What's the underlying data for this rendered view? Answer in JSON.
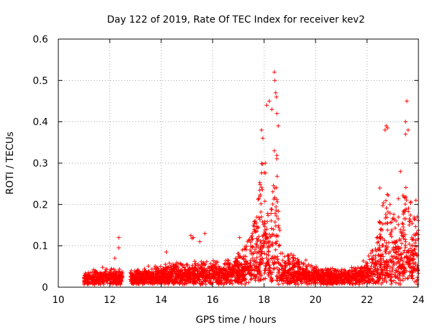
{
  "chart_data": {
    "type": "scatter",
    "title": "Day 122 of 2019, Rate Of TEC Index for receiver kev2",
    "xlabel": "GPS time / hours",
    "ylabel": "ROTI / TECUs",
    "xlim": [
      10,
      24
    ],
    "ylim": [
      0,
      0.6
    ],
    "xticks": [
      "10",
      "12",
      "14",
      "16",
      "18",
      "20",
      "22",
      "24"
    ],
    "yticks": [
      "0",
      "0.1",
      "0.2",
      "0.3",
      "0.4",
      "0.5",
      "0.6"
    ],
    "grid": true,
    "marker": "+",
    "series_color": "#ff0000",
    "time_coverage": [
      [
        11.0,
        12.5
      ],
      [
        12.8,
        24.0
      ]
    ],
    "envelope": [
      {
        "t": 11.0,
        "base": 0.018,
        "spread": 0.02
      },
      {
        "t": 12.0,
        "base": 0.02,
        "spread": 0.025
      },
      {
        "t": 12.5,
        "base": 0.018,
        "spread": 0.02
      },
      {
        "t": 12.8,
        "base": 0.018,
        "spread": 0.02
      },
      {
        "t": 14.0,
        "base": 0.022,
        "spread": 0.03
      },
      {
        "t": 15.0,
        "base": 0.025,
        "spread": 0.035
      },
      {
        "t": 16.0,
        "base": 0.025,
        "spread": 0.035
      },
      {
        "t": 16.8,
        "base": 0.03,
        "spread": 0.04
      },
      {
        "t": 17.3,
        "base": 0.04,
        "spread": 0.07
      },
      {
        "t": 17.8,
        "base": 0.06,
        "spread": 0.18
      },
      {
        "t": 18.0,
        "base": 0.08,
        "spread": 0.3
      },
      {
        "t": 18.2,
        "base": 0.05,
        "spread": 0.1
      },
      {
        "t": 18.45,
        "base": 0.08,
        "spread": 0.35
      },
      {
        "t": 18.7,
        "base": 0.03,
        "spread": 0.05
      },
      {
        "t": 19.2,
        "base": 0.03,
        "spread": 0.05
      },
      {
        "t": 20.0,
        "base": 0.022,
        "spread": 0.025
      },
      {
        "t": 21.0,
        "base": 0.02,
        "spread": 0.02
      },
      {
        "t": 21.8,
        "base": 0.025,
        "spread": 0.03
      },
      {
        "t": 22.3,
        "base": 0.04,
        "spread": 0.06
      },
      {
        "t": 22.7,
        "base": 0.06,
        "spread": 0.2
      },
      {
        "t": 23.0,
        "base": 0.05,
        "spread": 0.15
      },
      {
        "t": 23.5,
        "base": 0.06,
        "spread": 0.2
      },
      {
        "t": 24.0,
        "base": 0.03,
        "spread": 0.15
      }
    ],
    "spikes": [
      {
        "x": 12.35,
        "y": 0.12
      },
      {
        "x": 12.35,
        "y": 0.095
      },
      {
        "x": 12.2,
        "y": 0.07
      },
      {
        "x": 14.2,
        "y": 0.085
      },
      {
        "x": 15.15,
        "y": 0.125
      },
      {
        "x": 15.2,
        "y": 0.118
      },
      {
        "x": 15.25,
        "y": 0.12
      },
      {
        "x": 15.5,
        "y": 0.11
      },
      {
        "x": 15.7,
        "y": 0.13
      },
      {
        "x": 17.05,
        "y": 0.12
      },
      {
        "x": 17.9,
        "y": 0.38
      },
      {
        "x": 17.95,
        "y": 0.36
      },
      {
        "x": 18.05,
        "y": 0.3
      },
      {
        "x": 18.1,
        "y": 0.44
      },
      {
        "x": 18.2,
        "y": 0.45
      },
      {
        "x": 18.3,
        "y": 0.43
      },
      {
        "x": 18.4,
        "y": 0.52
      },
      {
        "x": 18.42,
        "y": 0.5
      },
      {
        "x": 18.45,
        "y": 0.47
      },
      {
        "x": 18.48,
        "y": 0.46
      },
      {
        "x": 18.5,
        "y": 0.42
      },
      {
        "x": 18.55,
        "y": 0.39
      },
      {
        "x": 18.4,
        "y": 0.33
      },
      {
        "x": 22.5,
        "y": 0.24
      },
      {
        "x": 22.7,
        "y": 0.38
      },
      {
        "x": 22.75,
        "y": 0.39
      },
      {
        "x": 22.8,
        "y": 0.385
      },
      {
        "x": 23.55,
        "y": 0.45
      },
      {
        "x": 23.5,
        "y": 0.4
      },
      {
        "x": 23.5,
        "y": 0.37
      },
      {
        "x": 23.6,
        "y": 0.38
      },
      {
        "x": 23.9,
        "y": 0.21
      },
      {
        "x": 23.95,
        "y": 0.17
      },
      {
        "x": 23.3,
        "y": 0.28
      }
    ]
  }
}
